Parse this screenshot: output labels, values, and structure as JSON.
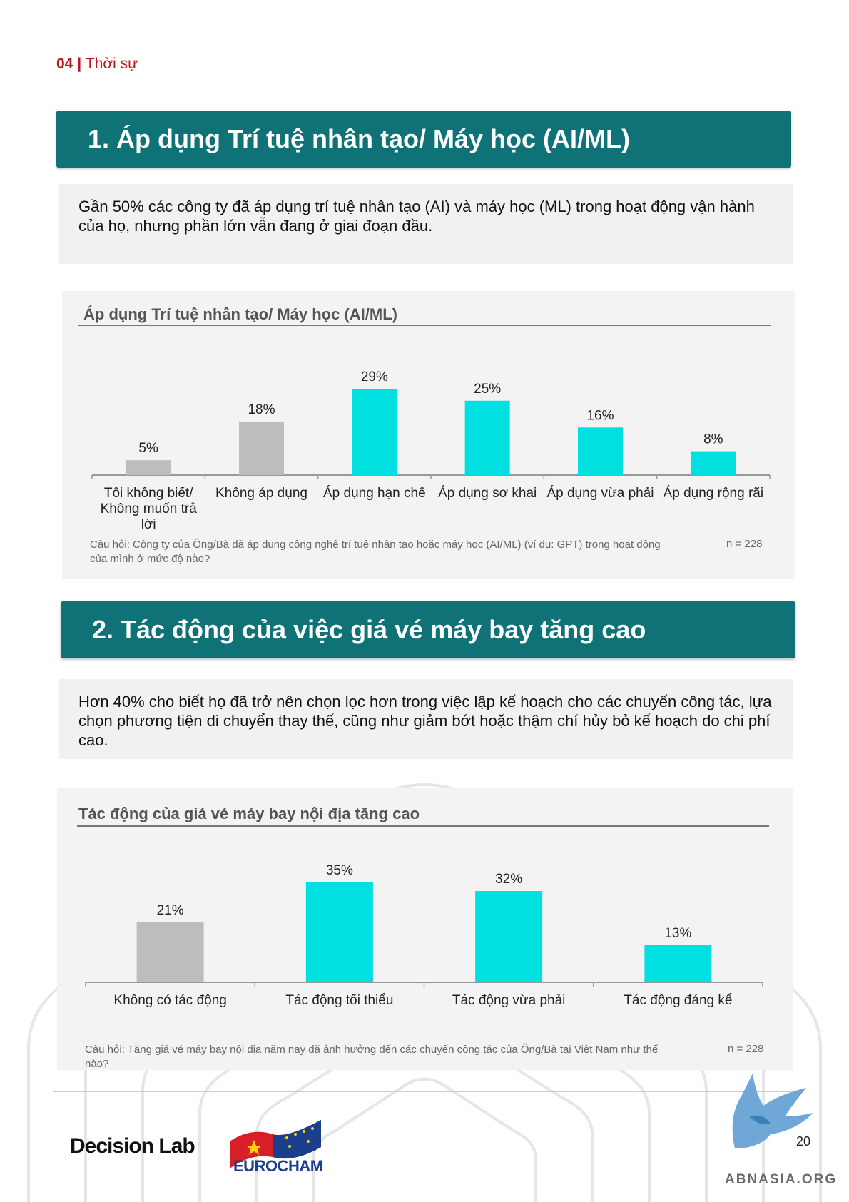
{
  "header": {
    "number": "04",
    "separator": " | ",
    "section": "Thời sự"
  },
  "section1": {
    "title": "1. Áp dụng Trí tuệ nhân tạo/ Máy học (AI/ML)",
    "summary": "Gần 50% các công ty đã áp dụng trí tuệ nhân tạo (AI) và máy học (ML) trong hoạt động vận hành của họ, nhưng phần lớn vẫn đang ở giai đoạn đầu.",
    "chart_title": "Áp dụng Trí tuệ nhân tạo/ Máy học (AI/ML)",
    "question": "Câu hỏi: Công ty của Ông/Bà đã áp dụng công nghệ trí tuệ nhân tạo hoặc máy học (AI/ML) (ví dụ: GPT) trong hoạt động của mình ở mức độ nào?",
    "n": "n = 228"
  },
  "section2": {
    "title": "2. Tác động của việc giá vé máy bay tăng cao",
    "summary": "Hơn 40% cho biết họ đã trở nên chọn lọc hơn trong việc lập kế hoạch cho các chuyến công tác, lựa chọn phương tiện di chuyển thay thế, cũng như giảm bớt hoặc thậm chí hủy bỏ kế hoạch do chi phí cao.",
    "chart_title": "Tác động của giá vé máy bay nội địa tăng cao",
    "question": "Câu hỏi: Tăng giá vé máy bay nội địa năm nay đã ảnh hưởng đến các chuyến công tác của Ông/Bà tại Việt Nam như thế nào?",
    "n": "n = 228"
  },
  "colors": {
    "primary_bar": "#00e0e0",
    "neutral_bar": "#bdbdbd",
    "section_bar": "#0f7277",
    "header_red": "#c0161f"
  },
  "chart_data": [
    {
      "type": "bar",
      "title": "Áp dụng Trí tuệ nhân tạo/ Máy học (AI/ML)",
      "categories": [
        "Tôi không biết/ Không muốn trả lời",
        "Không áp dụng",
        "Áp dụng hạn chế",
        "Áp dụng sơ khai",
        "Áp dụng vừa phải",
        "Áp dụng rộng rãi"
      ],
      "values": [
        5,
        18,
        29,
        25,
        16,
        8
      ],
      "data_labels": [
        "5%",
        "18%",
        "29%",
        "25%",
        "16%",
        "8%"
      ],
      "bar_colors": [
        "#bdbdbd",
        "#bdbdbd",
        "#00e0e0",
        "#00e0e0",
        "#00e0e0",
        "#00e0e0"
      ],
      "unit": "%",
      "ylim": [
        0,
        35
      ],
      "grid": false
    },
    {
      "type": "bar",
      "title": "Tác động của giá vé máy bay nội địa tăng cao",
      "categories": [
        "Không có tác động",
        "Tác động tối thiểu",
        "Tác động vừa phải",
        "Tác động đáng kể"
      ],
      "values": [
        21,
        35,
        32,
        13
      ],
      "data_labels": [
        "21%",
        "35%",
        "32%",
        "13%"
      ],
      "bar_colors": [
        "#bdbdbd",
        "#00e0e0",
        "#00e0e0",
        "#00e0e0"
      ],
      "unit": "%",
      "ylim": [
        0,
        40
      ],
      "grid": false
    }
  ],
  "footer": {
    "decision_lab": "Decision Lab",
    "eurocham": "EUROCHAM",
    "page_number": "20",
    "abn": "ABNASIA.ORG"
  }
}
